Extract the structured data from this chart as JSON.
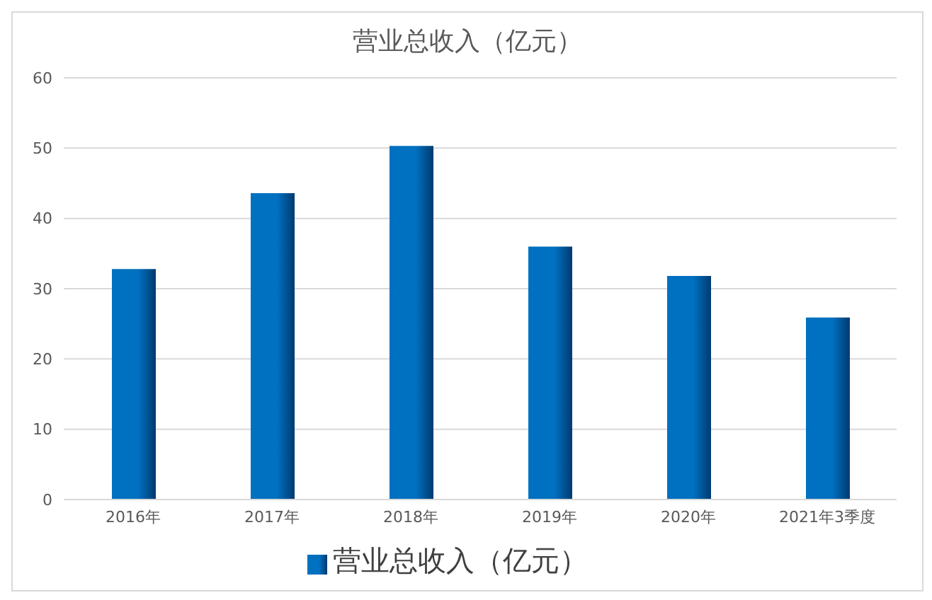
{
  "chart_data": {
    "type": "bar",
    "title": "营业总收入（亿元）",
    "categories": [
      "2016年",
      "2017年",
      "2018年",
      "2019年",
      "2020年",
      "2021年3季度"
    ],
    "series": [
      {
        "name": "营业总收入（亿元）",
        "color": "#0070c0",
        "values": [
          32.8,
          43.6,
          50.3,
          36.0,
          31.8,
          25.9
        ]
      }
    ],
    "ylim": [
      0,
      60
    ],
    "yticks": [
      0,
      10,
      20,
      30,
      40,
      50,
      60
    ],
    "grid": "y",
    "legend": "bottom"
  }
}
